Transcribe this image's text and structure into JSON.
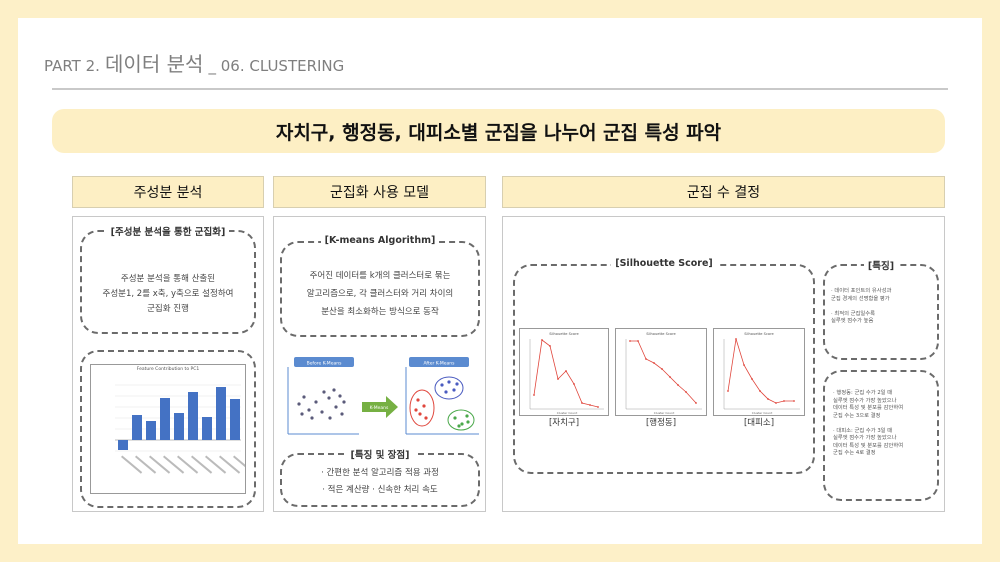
{
  "header": {
    "part": "PART 2.",
    "title_ko": "데이터 분석",
    "title_en": "_ 06. CLUSTERING"
  },
  "banner": "자치구, 행정동, 대피소별 군집을 나누어 군집 특성 파악",
  "columns": {
    "pca": {
      "heading": "주성분 분석",
      "box_title": "[주성분 분석을 통한 군집화]",
      "desc": [
        "주성분 분석을 통해 산출된",
        "주성분1, 2를 x축, y축으로 설정하여",
        "군집화 진행"
      ],
      "chart_title": "Feature Contribution to PC1",
      "chart_type": "bar",
      "bar_color": "#4472c4"
    },
    "model": {
      "heading": "군집화 사용 모델",
      "box_title": "[K-means Algorithm]",
      "desc": [
        "주어진 데이터를 k개의 클러스터로 묶는",
        "알고리즘으로, 각 클러스터와 거리 차이의",
        "분산을 최소화하는 방식으로 동작"
      ],
      "before_label": "Before K-Means",
      "arrow_label": "K-Means",
      "after_label": "After K-Means",
      "features_title": "[특징 및 장점]",
      "features": [
        "· 간편한 분석 알고리즘 적용 과정",
        "· 적은 계산량   · 신속한 처리 속도"
      ]
    },
    "clusters": {
      "heading": "군집 수 결정",
      "silhouette_title": "[Silhouette Score]",
      "charts": [
        {
          "title": "Silhouette Score",
          "caption": "[자치구]",
          "xlabel": "Cluster Count"
        },
        {
          "title": "Silhouette Score",
          "caption": "[행정동]",
          "xlabel": "Cluster Count"
        },
        {
          "title": "Silhouette Score",
          "caption": "[대피소]",
          "xlabel": "Cluster Count"
        }
      ],
      "traits_title": "[특징]",
      "traits": [
        "· 데이터 포인트의 유사성과",
        "군집 경계의 선명함을 평가",
        "",
        "· 최적의 군집일수록",
        "실루엣 점수가 높음"
      ],
      "notes": [
        "· 행정동: 군집 수가 2일 때",
        "실루엣 점수가 가장 높았으나",
        "데이터 특성 및 분포를 감안하여",
        "군집 수는 3으로 결정",
        "",
        "· 대피소: 군집 수가 3일 때",
        "실루엣 점수가 가장 높았으나",
        "데이터 특성 및 분포를 감안하여",
        "군집 수는 4로 결정"
      ],
      "line_color": "#e0463c"
    }
  }
}
